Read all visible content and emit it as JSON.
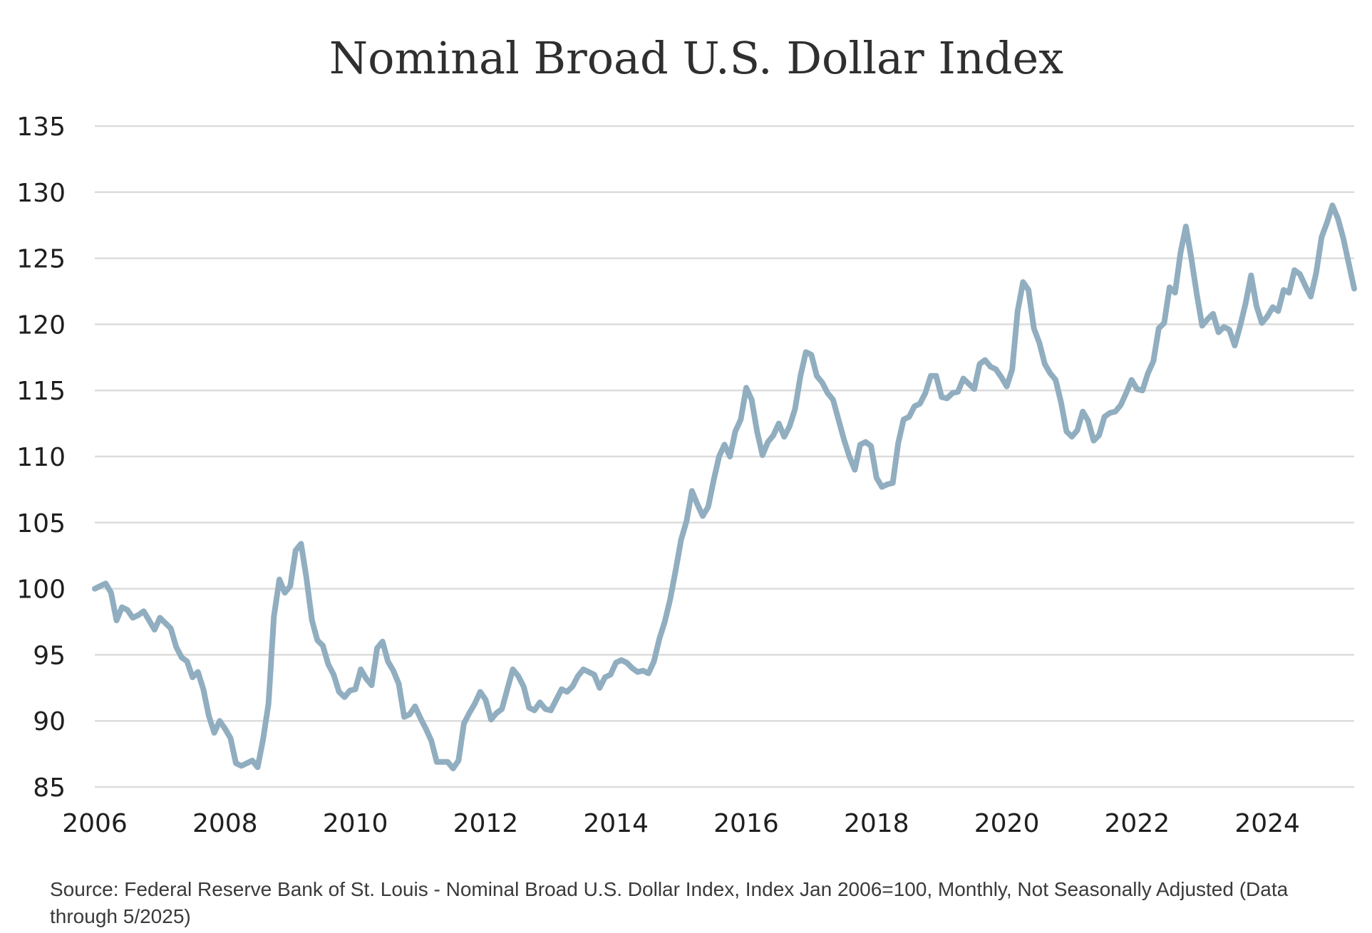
{
  "chart_data": {
    "type": "line",
    "title": "Nominal Broad U.S. Dollar Index",
    "xlabel": "",
    "ylabel": "",
    "x_ticks": [
      "2006",
      "2008",
      "2010",
      "2012",
      "2014",
      "2016",
      "2018",
      "2020",
      "2022",
      "2024"
    ],
    "y_ticks": [
      "85",
      "90",
      "95",
      "100",
      "105",
      "110",
      "115",
      "120",
      "125",
      "130",
      "135"
    ],
    "ylim": [
      85,
      135
    ],
    "xlim": [
      "2006-01",
      "2025-05"
    ],
    "grid": true,
    "line_color": "#91aec0",
    "series": [
      {
        "values": [
          [
            "2006-01",
            100.0
          ],
          [
            "2006-02",
            100.2
          ],
          [
            "2006-03",
            100.4
          ],
          [
            "2006-04",
            99.7
          ],
          [
            "2006-05",
            97.6
          ],
          [
            "2006-06",
            98.6
          ],
          [
            "2006-07",
            98.4
          ],
          [
            "2006-08",
            97.8
          ],
          [
            "2006-09",
            98.0
          ],
          [
            "2006-10",
            98.3
          ],
          [
            "2006-11",
            97.6
          ],
          [
            "2006-12",
            96.9
          ],
          [
            "2007-01",
            97.8
          ],
          [
            "2007-02",
            97.4
          ],
          [
            "2007-03",
            97.0
          ],
          [
            "2007-04",
            95.6
          ],
          [
            "2007-05",
            94.8
          ],
          [
            "2007-06",
            94.5
          ],
          [
            "2007-07",
            93.3
          ],
          [
            "2007-08",
            93.7
          ],
          [
            "2007-09",
            92.4
          ],
          [
            "2007-10",
            90.4
          ],
          [
            "2007-11",
            89.1
          ],
          [
            "2007-12",
            90.0
          ],
          [
            "2008-01",
            89.4
          ],
          [
            "2008-02",
            88.7
          ],
          [
            "2008-03",
            86.8
          ],
          [
            "2008-04",
            86.6
          ],
          [
            "2008-05",
            86.8
          ],
          [
            "2008-06",
            87.0
          ],
          [
            "2008-07",
            86.5
          ],
          [
            "2008-08",
            88.6
          ],
          [
            "2008-09",
            91.3
          ],
          [
            "2008-10",
            97.9
          ],
          [
            "2008-11",
            100.7
          ],
          [
            "2008-12",
            99.7
          ],
          [
            "2009-01",
            100.2
          ],
          [
            "2009-02",
            102.9
          ],
          [
            "2009-03",
            103.4
          ],
          [
            "2009-04",
            100.8
          ],
          [
            "2009-05",
            97.6
          ],
          [
            "2009-06",
            96.1
          ],
          [
            "2009-07",
            95.7
          ],
          [
            "2009-08",
            94.3
          ],
          [
            "2009-09",
            93.5
          ],
          [
            "2009-10",
            92.2
          ],
          [
            "2009-11",
            91.8
          ],
          [
            "2009-12",
            92.3
          ],
          [
            "2010-01",
            92.4
          ],
          [
            "2010-02",
            93.9
          ],
          [
            "2010-03",
            93.2
          ],
          [
            "2010-04",
            92.7
          ],
          [
            "2010-05",
            95.5
          ],
          [
            "2010-06",
            96.0
          ],
          [
            "2010-07",
            94.5
          ],
          [
            "2010-08",
            93.8
          ],
          [
            "2010-09",
            92.8
          ],
          [
            "2010-10",
            90.3
          ],
          [
            "2010-11",
            90.5
          ],
          [
            "2010-12",
            91.1
          ],
          [
            "2011-01",
            90.2
          ],
          [
            "2011-02",
            89.4
          ],
          [
            "2011-03",
            88.5
          ],
          [
            "2011-04",
            86.9
          ],
          [
            "2011-05",
            86.9
          ],
          [
            "2011-06",
            86.9
          ],
          [
            "2011-07",
            86.4
          ],
          [
            "2011-08",
            87.0
          ],
          [
            "2011-09",
            89.8
          ],
          [
            "2011-10",
            90.6
          ],
          [
            "2011-11",
            91.3
          ],
          [
            "2011-12",
            92.2
          ],
          [
            "2012-01",
            91.6
          ],
          [
            "2012-02",
            90.1
          ],
          [
            "2012-03",
            90.6
          ],
          [
            "2012-04",
            90.9
          ],
          [
            "2012-05",
            92.4
          ],
          [
            "2012-06",
            93.9
          ],
          [
            "2012-07",
            93.4
          ],
          [
            "2012-08",
            92.6
          ],
          [
            "2012-09",
            91.0
          ],
          [
            "2012-10",
            90.8
          ],
          [
            "2012-11",
            91.4
          ],
          [
            "2012-12",
            90.9
          ],
          [
            "2013-01",
            90.8
          ],
          [
            "2013-02",
            91.6
          ],
          [
            "2013-03",
            92.4
          ],
          [
            "2013-04",
            92.2
          ],
          [
            "2013-05",
            92.6
          ],
          [
            "2013-06",
            93.4
          ],
          [
            "2013-07",
            93.9
          ],
          [
            "2013-08",
            93.7
          ],
          [
            "2013-09",
            93.5
          ],
          [
            "2013-10",
            92.5
          ],
          [
            "2013-11",
            93.3
          ],
          [
            "2013-12",
            93.5
          ],
          [
            "2014-01",
            94.4
          ],
          [
            "2014-02",
            94.6
          ],
          [
            "2014-03",
            94.4
          ],
          [
            "2014-04",
            94.0
          ],
          [
            "2014-05",
            93.7
          ],
          [
            "2014-06",
            93.8
          ],
          [
            "2014-07",
            93.6
          ],
          [
            "2014-08",
            94.5
          ],
          [
            "2014-09",
            96.2
          ],
          [
            "2014-10",
            97.5
          ],
          [
            "2014-11",
            99.2
          ],
          [
            "2014-12",
            101.4
          ],
          [
            "2015-01",
            103.7
          ],
          [
            "2015-02",
            105.1
          ],
          [
            "2015-03",
            107.4
          ],
          [
            "2015-04",
            106.4
          ],
          [
            "2015-05",
            105.5
          ],
          [
            "2015-06",
            106.2
          ],
          [
            "2015-07",
            108.2
          ],
          [
            "2015-08",
            110.0
          ],
          [
            "2015-09",
            110.9
          ],
          [
            "2015-10",
            110.0
          ],
          [
            "2015-11",
            111.9
          ],
          [
            "2015-12",
            112.8
          ],
          [
            "2016-01",
            115.2
          ],
          [
            "2016-02",
            114.3
          ],
          [
            "2016-03",
            111.9
          ],
          [
            "2016-04",
            110.1
          ],
          [
            "2016-05",
            111.1
          ],
          [
            "2016-06",
            111.6
          ],
          [
            "2016-07",
            112.5
          ],
          [
            "2016-08",
            111.5
          ],
          [
            "2016-09",
            112.3
          ],
          [
            "2016-10",
            113.6
          ],
          [
            "2016-11",
            116.1
          ],
          [
            "2016-12",
            117.9
          ],
          [
            "2017-01",
            117.7
          ],
          [
            "2017-02",
            116.1
          ],
          [
            "2017-03",
            115.6
          ],
          [
            "2017-04",
            114.8
          ],
          [
            "2017-05",
            114.3
          ],
          [
            "2017-06",
            112.8
          ],
          [
            "2017-07",
            111.3
          ],
          [
            "2017-08",
            110.0
          ],
          [
            "2017-09",
            109.0
          ],
          [
            "2017-10",
            110.9
          ],
          [
            "2017-11",
            111.1
          ],
          [
            "2017-12",
            110.8
          ],
          [
            "2018-01",
            108.4
          ],
          [
            "2018-02",
            107.7
          ],
          [
            "2018-03",
            107.9
          ],
          [
            "2018-04",
            108.0
          ],
          [
            "2018-05",
            111.0
          ],
          [
            "2018-06",
            112.8
          ],
          [
            "2018-07",
            113.0
          ],
          [
            "2018-08",
            113.8
          ],
          [
            "2018-09",
            114.0
          ],
          [
            "2018-10",
            114.8
          ],
          [
            "2018-11",
            116.1
          ],
          [
            "2018-12",
            116.1
          ],
          [
            "2019-01",
            114.5
          ],
          [
            "2019-02",
            114.4
          ],
          [
            "2019-03",
            114.8
          ],
          [
            "2019-04",
            114.9
          ],
          [
            "2019-05",
            115.9
          ],
          [
            "2019-06",
            115.5
          ],
          [
            "2019-07",
            115.1
          ],
          [
            "2019-08",
            117.0
          ],
          [
            "2019-09",
            117.3
          ],
          [
            "2019-10",
            116.8
          ],
          [
            "2019-11",
            116.6
          ],
          [
            "2019-12",
            116.0
          ],
          [
            "2020-01",
            115.3
          ],
          [
            "2020-02",
            116.6
          ],
          [
            "2020-03",
            121.0
          ],
          [
            "2020-04",
            123.2
          ],
          [
            "2020-05",
            122.6
          ],
          [
            "2020-06",
            119.7
          ],
          [
            "2020-07",
            118.6
          ],
          [
            "2020-08",
            117.0
          ],
          [
            "2020-09",
            116.3
          ],
          [
            "2020-10",
            115.8
          ],
          [
            "2020-11",
            114.1
          ],
          [
            "2020-12",
            111.9
          ],
          [
            "2021-01",
            111.5
          ],
          [
            "2021-02",
            112.0
          ],
          [
            "2021-03",
            113.4
          ],
          [
            "2021-04",
            112.7
          ],
          [
            "2021-05",
            111.2
          ],
          [
            "2021-06",
            111.6
          ],
          [
            "2021-07",
            113.0
          ],
          [
            "2021-08",
            113.3
          ],
          [
            "2021-09",
            113.4
          ],
          [
            "2021-10",
            113.9
          ],
          [
            "2021-11",
            114.8
          ],
          [
            "2021-12",
            115.8
          ],
          [
            "2022-01",
            115.1
          ],
          [
            "2022-02",
            115.0
          ],
          [
            "2022-03",
            116.3
          ],
          [
            "2022-04",
            117.2
          ],
          [
            "2022-05",
            119.7
          ],
          [
            "2022-06",
            120.1
          ],
          [
            "2022-07",
            122.8
          ],
          [
            "2022-08",
            122.4
          ],
          [
            "2022-09",
            125.4
          ],
          [
            "2022-10",
            127.4
          ],
          [
            "2022-11",
            125.0
          ],
          [
            "2022-12",
            122.3
          ],
          [
            "2023-01",
            119.9
          ],
          [
            "2023-02",
            120.4
          ],
          [
            "2023-03",
            120.8
          ],
          [
            "2023-04",
            119.4
          ],
          [
            "2023-05",
            119.8
          ],
          [
            "2023-06",
            119.6
          ],
          [
            "2023-07",
            118.4
          ],
          [
            "2023-08",
            119.9
          ],
          [
            "2023-09",
            121.6
          ],
          [
            "2023-10",
            123.7
          ],
          [
            "2023-11",
            121.4
          ],
          [
            "2023-12",
            120.1
          ],
          [
            "2024-01",
            120.6
          ],
          [
            "2024-02",
            121.3
          ],
          [
            "2024-03",
            121.0
          ],
          [
            "2024-04",
            122.6
          ],
          [
            "2024-05",
            122.4
          ],
          [
            "2024-06",
            124.1
          ],
          [
            "2024-07",
            123.8
          ],
          [
            "2024-08",
            122.9
          ],
          [
            "2024-09",
            122.1
          ],
          [
            "2024-10",
            123.9
          ],
          [
            "2024-11",
            126.6
          ],
          [
            "2024-12",
            127.7
          ],
          [
            "2025-01",
            129.0
          ],
          [
            "2025-02",
            128.0
          ],
          [
            "2025-03",
            126.5
          ],
          [
            "2025-04",
            124.6
          ],
          [
            "2025-05",
            122.7
          ]
        ]
      }
    ]
  },
  "source_note": "Source: Federal Reserve Bank of St. Louis - Nominal Broad U.S. Dollar Index, Index Jan 2006=100, Monthly, Not Seasonally Adjusted (Data through 5/2025)"
}
